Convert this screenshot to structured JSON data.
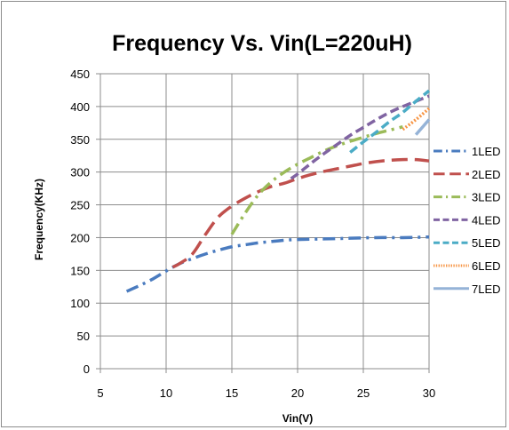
{
  "chart_data": {
    "type": "line",
    "title": "Frequency Vs. Vin(L=220uH)",
    "xlabel": "Vin(V)",
    "ylabel": "Frequency(KHz)",
    "xlim": [
      5,
      30
    ],
    "ylim": [
      0,
      450
    ],
    "x_ticks": [
      "5",
      "10",
      "15",
      "20",
      "25",
      "30"
    ],
    "y_ticks": [
      "0",
      "50",
      "100",
      "150",
      "200",
      "250",
      "300",
      "350",
      "400",
      "450"
    ],
    "grid": true,
    "legend_position": "right",
    "series": [
      {
        "name": "1LED",
        "color": "#4a7bbf",
        "dash": "dash-dot",
        "points": [
          [
            7,
            118
          ],
          [
            8,
            127
          ],
          [
            9,
            137
          ],
          [
            10,
            149
          ],
          [
            11,
            160
          ],
          [
            12,
            168
          ],
          [
            13,
            175
          ],
          [
            14,
            181
          ],
          [
            15,
            186
          ],
          [
            16,
            189
          ],
          [
            17,
            192
          ],
          [
            18,
            194
          ],
          [
            19,
            196
          ],
          [
            20,
            197
          ],
          [
            22,
            198
          ],
          [
            24,
            199
          ],
          [
            26,
            200
          ],
          [
            28,
            200
          ],
          [
            30,
            201
          ]
        ]
      },
      {
        "name": "2LED",
        "color": "#c0504d",
        "dash": "long-dash",
        "points": [
          [
            10.5,
            155
          ],
          [
            11,
            160
          ],
          [
            12,
            175
          ],
          [
            13,
            205
          ],
          [
            14,
            232
          ],
          [
            15,
            248
          ],
          [
            16,
            260
          ],
          [
            17,
            270
          ],
          [
            18,
            278
          ],
          [
            19,
            283
          ],
          [
            20,
            290
          ],
          [
            21,
            296
          ],
          [
            22,
            301
          ],
          [
            23,
            305
          ],
          [
            24,
            309
          ],
          [
            25,
            313
          ],
          [
            26,
            316
          ],
          [
            27,
            318
          ],
          [
            28,
            319
          ],
          [
            29,
            319
          ],
          [
            30,
            317
          ]
        ]
      },
      {
        "name": "3LED",
        "color": "#9bbb59",
        "dash": "dash-dot",
        "points": [
          [
            15,
            205
          ],
          [
            16,
            237
          ],
          [
            17,
            265
          ],
          [
            18,
            285
          ],
          [
            19,
            300
          ],
          [
            20,
            312
          ],
          [
            21,
            322
          ],
          [
            22,
            332
          ],
          [
            23,
            340
          ],
          [
            24,
            347
          ],
          [
            25,
            353
          ],
          [
            26,
            359
          ],
          [
            27,
            364
          ],
          [
            28,
            369
          ]
        ]
      },
      {
        "name": "4LED",
        "color": "#8064a2",
        "dash": "dash",
        "points": [
          [
            19.5,
            290
          ],
          [
            20,
            297
          ],
          [
            21,
            313
          ],
          [
            22,
            328
          ],
          [
            23,
            342
          ],
          [
            24,
            356
          ],
          [
            25,
            368
          ],
          [
            26,
            380
          ],
          [
            27,
            391
          ],
          [
            28,
            400
          ],
          [
            29,
            408
          ],
          [
            30,
            416
          ]
        ]
      },
      {
        "name": "5LED",
        "color": "#4bacc6",
        "dash": "dash",
        "points": [
          [
            24,
            330
          ],
          [
            25,
            346
          ],
          [
            26,
            361
          ],
          [
            27,
            377
          ],
          [
            28,
            391
          ],
          [
            29,
            408
          ],
          [
            30,
            424
          ]
        ]
      },
      {
        "name": "6LED",
        "color": "#f79646",
        "dash": "dot",
        "points": [
          [
            28,
            365
          ],
          [
            29,
            380
          ],
          [
            30,
            397
          ]
        ]
      },
      {
        "name": "7LED",
        "color": "#95b3d7",
        "dash": "solid",
        "points": [
          [
            29,
            357
          ],
          [
            30,
            380
          ]
        ]
      }
    ]
  }
}
